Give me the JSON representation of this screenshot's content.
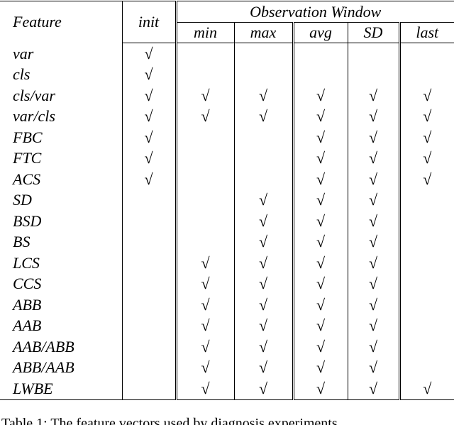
{
  "table": {
    "header": {
      "feature": "Feature",
      "init": "init",
      "group": "Observation Window",
      "columns": [
        "min",
        "max",
        "avg",
        "SD",
        "last"
      ]
    },
    "rows": [
      {
        "feature": "var",
        "cells": [
          "√",
          null,
          null,
          null,
          null,
          null
        ]
      },
      {
        "feature": "cls",
        "cells": [
          "√",
          null,
          null,
          null,
          null,
          null
        ]
      },
      {
        "feature": "cls/var",
        "cells": [
          "√",
          "√",
          "√",
          "√",
          "√",
          "√"
        ]
      },
      {
        "feature": "var/cls",
        "cells": [
          "√",
          "√",
          "√",
          "√",
          "√",
          "√"
        ]
      },
      {
        "feature": "FBC",
        "cells": [
          "√",
          null,
          null,
          "√",
          "√",
          "√"
        ]
      },
      {
        "feature": "FTC",
        "cells": [
          "√",
          null,
          null,
          "√",
          "√",
          "√"
        ]
      },
      {
        "feature": "ACS",
        "cells": [
          "√",
          null,
          null,
          "√",
          "√",
          "√"
        ]
      },
      {
        "feature": "SD",
        "cells": [
          null,
          null,
          "√",
          "√",
          "√",
          null
        ]
      },
      {
        "feature": "BSD",
        "cells": [
          null,
          null,
          "√",
          "√",
          "√",
          null
        ]
      },
      {
        "feature": "BS",
        "cells": [
          null,
          null,
          "√",
          "√",
          "√",
          null
        ]
      },
      {
        "feature": "LCS",
        "cells": [
          null,
          "√",
          "√",
          "√",
          "√",
          null
        ]
      },
      {
        "feature": "CCS",
        "cells": [
          null,
          "√",
          "√",
          "√",
          "√",
          null
        ]
      },
      {
        "feature": "ABB",
        "cells": [
          null,
          "√",
          "√",
          "√",
          "√",
          null
        ]
      },
      {
        "feature": "AAB",
        "cells": [
          null,
          "√",
          "√",
          "√",
          "√",
          null
        ]
      },
      {
        "feature": "AAB/ABB",
        "cells": [
          null,
          "√",
          "√",
          "√",
          "√",
          null
        ]
      },
      {
        "feature": "ABB/AAB",
        "cells": [
          null,
          "√",
          "√",
          "√",
          "√",
          null
        ]
      },
      {
        "feature": "LWBE",
        "cells": [
          null,
          "√",
          "√",
          "√",
          "√",
          "√"
        ]
      }
    ]
  },
  "caption": "Table 1: The feature vectors used by diagnosis experiments"
}
